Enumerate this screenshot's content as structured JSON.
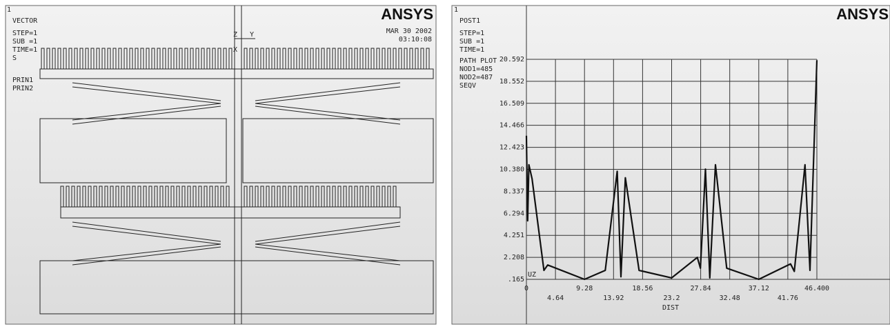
{
  "left_panel": {
    "window_number": "1",
    "title": "VECTOR",
    "legend_lines": [
      "STEP=1",
      "SUB =1",
      "TIME=1",
      "S"
    ],
    "vector_labels": [
      "PRIN1",
      "PRIN2"
    ],
    "logo": "ANSYS",
    "date": "MAR 30 2002",
    "time": "03:10:08",
    "triad": [
      "Z",
      "Y",
      "X"
    ]
  },
  "right_panel": {
    "window_number": "1",
    "title": "POST1",
    "logo": "ANSYS"
  },
  "chart_data": {
    "type": "line",
    "legend_lines": [
      "STEP=1",
      "SUB =1",
      "TIME=1",
      "PATH PLOT",
      "NOD1=485",
      "NOD2=487",
      "SEQV"
    ],
    "annotation": "UZ",
    "xlabel": "DIST",
    "color": "#111111",
    "grid": true,
    "x": [
      0,
      0.2,
      0.4,
      0.9,
      2.8,
      3.4,
      9.28,
      12.6,
      14.5,
      15.1,
      15.8,
      18.0,
      23.2,
      27.3,
      27.8,
      28.6,
      29.3,
      30.2,
      32.0,
      37.12,
      42.2,
      42.8,
      44.5,
      45.3,
      46.4
    ],
    "values": [
      13.5,
      5.6,
      10.8,
      9.5,
      1.0,
      1.5,
      0.165,
      1.0,
      10.2,
      0.4,
      9.6,
      1.0,
      0.3,
      2.2,
      1.2,
      10.4,
      0.3,
      10.8,
      1.2,
      0.165,
      1.6,
      0.9,
      10.8,
      1.0,
      20.5
    ],
    "xlim": [
      0,
      46.4
    ],
    "xticks": [
      0,
      4.64,
      9.28,
      13.92,
      18.56,
      23.2,
      27.84,
      32.48,
      37.12,
      41.76,
      {
        "value": 46.4,
        "label": "46.400"
      }
    ],
    "ylim": [
      0.165,
      20.592
    ],
    "yticks": [
      {
        "value": 0.165,
        "label": ".165"
      },
      2.208,
      4.251,
      6.294,
      8.337,
      {
        "value": 10.38,
        "label": "10.380"
      },
      12.423,
      14.466,
      16.509,
      18.552,
      20.592
    ]
  }
}
